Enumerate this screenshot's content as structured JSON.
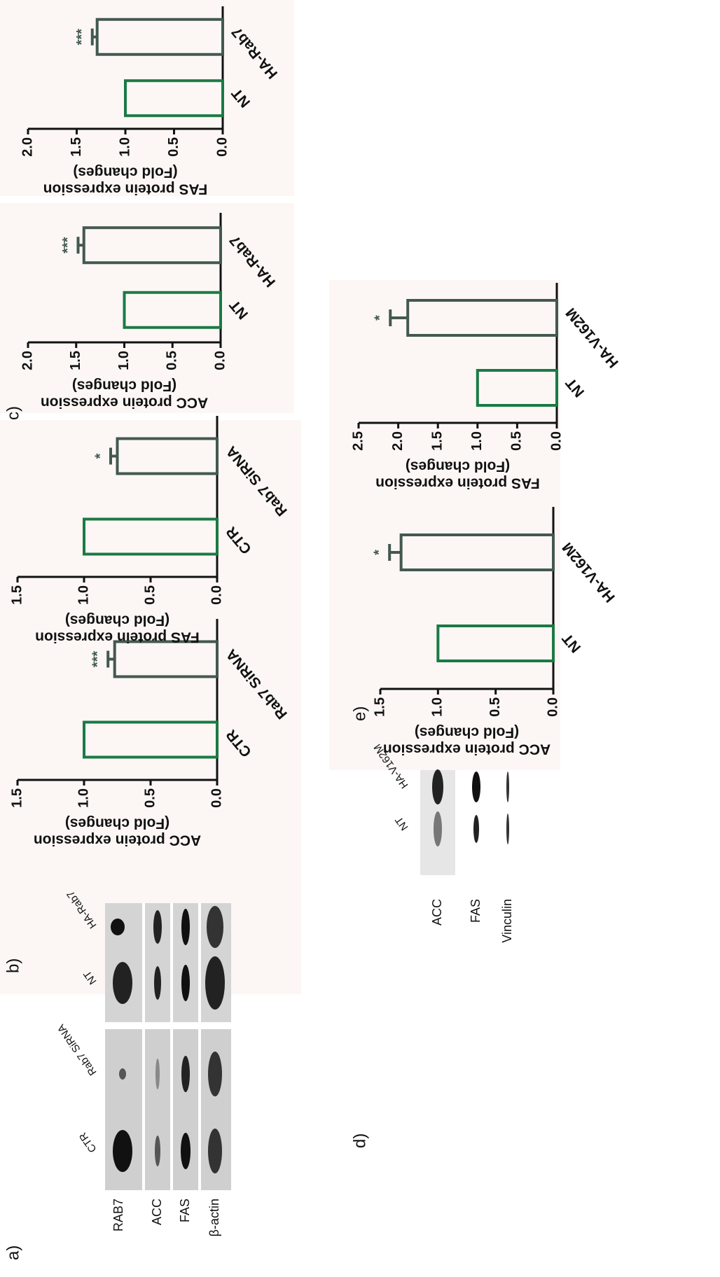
{
  "panels": [
    "a)",
    "b)",
    "c)",
    "d)",
    "e)"
  ],
  "blot_a": {
    "rows": [
      "RAB7",
      "ACC",
      "FAS",
      "β-actin"
    ],
    "columns": [
      "CTR",
      "Rab7 SiRNA",
      "NT",
      "HA-Rab7"
    ]
  },
  "blot_d": {
    "rows": [
      "ACC",
      "FAS",
      "Vinculin"
    ],
    "columns": [
      "NT",
      "HA-V162M"
    ]
  },
  "chart_data": [
    {
      "type": "bar",
      "ylabel": [
        "ACC protein expression",
        "(Fold changes)"
      ],
      "categories": [
        "CTR",
        "Rab7 SiRNA"
      ],
      "values": [
        1.0,
        0.77
      ],
      "errors": [
        null,
        0.05
      ],
      "annotations": [
        null,
        "***"
      ],
      "colors": [
        "#1b7a45",
        "#43594f"
      ],
      "ylim": [
        0,
        1.5
      ],
      "yticks": [
        {
          "value": 0,
          "label": "0.0"
        },
        0.5,
        {
          "value": 1,
          "label": "1.0"
        },
        1.5
      ]
    },
    {
      "type": "bar",
      "ylabel": [
        "FAS protein expression",
        "(Fold changes)"
      ],
      "categories": [
        "CTR",
        "Rab7 SiRNA"
      ],
      "values": [
        1.0,
        0.75
      ],
      "errors": [
        null,
        0.05
      ],
      "annotations": [
        null,
        "*"
      ],
      "colors": [
        "#1b7a45",
        "#43594f"
      ],
      "ylim": [
        0,
        1.5
      ],
      "yticks": [
        {
          "value": 0,
          "label": "0.0"
        },
        0.5,
        {
          "value": 1,
          "label": "1.0"
        },
        1.5
      ]
    },
    {
      "type": "bar",
      "ylabel": [
        "ACC protein expression",
        "(Fold changes)"
      ],
      "categories": [
        "NT",
        "HA-Rab7"
      ],
      "values": [
        1.0,
        1.42
      ],
      "errors": [
        null,
        0.06
      ],
      "annotations": [
        null,
        "***"
      ],
      "colors": [
        "#1b7a45",
        "#43594f"
      ],
      "ylim": [
        0,
        2
      ],
      "yticks": [
        {
          "value": 0,
          "label": "0.0"
        },
        0.5,
        {
          "value": 1,
          "label": "1.0"
        },
        1.5,
        {
          "value": 2,
          "label": "2.0"
        }
      ]
    },
    {
      "type": "bar",
      "ylabel": [
        "FAS protein expression",
        "(Fold changes)"
      ],
      "categories": [
        "NT",
        "HA-Rab7"
      ],
      "values": [
        1.0,
        1.29
      ],
      "errors": [
        null,
        0.05
      ],
      "annotations": [
        null,
        "***"
      ],
      "colors": [
        "#1b7a45",
        "#43594f"
      ],
      "ylim": [
        0,
        2
      ],
      "yticks": [
        {
          "value": 0,
          "label": "0.0"
        },
        0.5,
        {
          "value": 1,
          "label": "1.0"
        },
        1.5,
        {
          "value": 2,
          "label": "2.0"
        }
      ]
    },
    {
      "type": "bar",
      "ylabel": [
        "ACC protein expression",
        "(Fold changes)"
      ],
      "categories": [
        "NT",
        "HA-V162M"
      ],
      "values": [
        1.0,
        1.32
      ],
      "errors": [
        null,
        0.1
      ],
      "annotations": [
        null,
        "*"
      ],
      "colors": [
        "#1b7a45",
        "#43594f"
      ],
      "ylim": [
        0,
        1.5
      ],
      "yticks": [
        {
          "value": 0,
          "label": "0.0"
        },
        0.5,
        {
          "value": 1,
          "label": "1.0"
        },
        1.5
      ]
    },
    {
      "type": "bar",
      "ylabel": [
        "FAS protein expression",
        "(Fold changes)"
      ],
      "categories": [
        "NT",
        "HA-V162M"
      ],
      "values": [
        1.0,
        1.88
      ],
      "errors": [
        null,
        0.22
      ],
      "annotations": [
        null,
        "*"
      ],
      "colors": [
        "#1b7a45",
        "#43594f"
      ],
      "ylim": [
        0,
        2.5
      ],
      "yticks": [
        {
          "value": 0,
          "label": "0.0"
        },
        0.5,
        {
          "value": 1,
          "label": "1.0"
        },
        1.5,
        {
          "value": 2,
          "label": "2.0"
        },
        2.5
      ]
    }
  ]
}
